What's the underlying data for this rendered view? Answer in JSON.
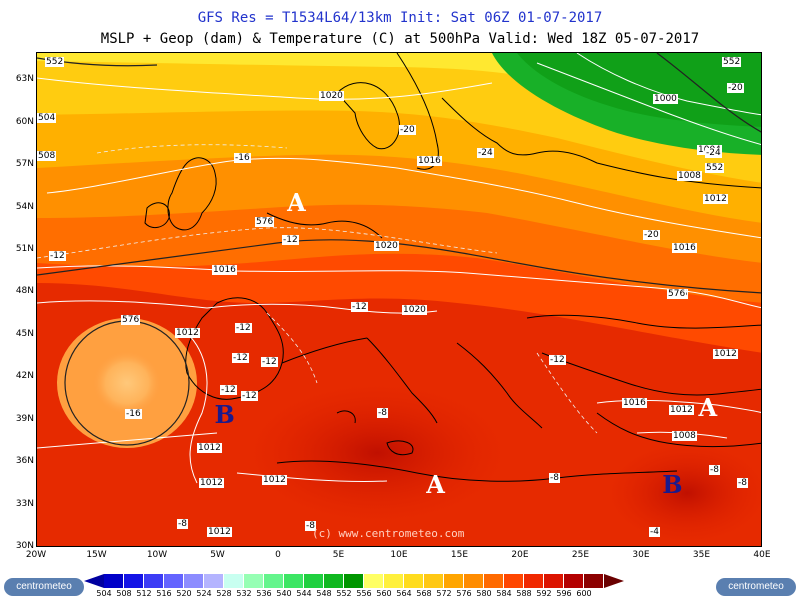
{
  "header": {
    "title_line1": "GFS Res = T1534L64/13km   Init: Sat 06Z 01-07-2017",
    "title_line2": "MSLP + Geop (dam) & Temperature (C) at 500hPa  Valid: Wed 18Z 05-07-2017"
  },
  "watermark": "(c) www.centrometeo.com",
  "axes": {
    "lat_labels": [
      "63N",
      "60N",
      "57N",
      "54N",
      "51N",
      "48N",
      "45N",
      "42N",
      "39N",
      "36N",
      "33N",
      "30N"
    ],
    "lon_labels": [
      "20W",
      "15W",
      "10W",
      "5W",
      "0",
      "5E",
      "10E",
      "15E",
      "20E",
      "25E",
      "30E",
      "35E",
      "40E"
    ],
    "lat_range": [
      30,
      65
    ],
    "lon_range": [
      -20,
      40
    ]
  },
  "pressure_centers": [
    {
      "type": "A",
      "lon": 1.5,
      "lat": 54.5
    },
    {
      "type": "B",
      "lon": -4.5,
      "lat": 39.5
    },
    {
      "type": "A",
      "lon": 13,
      "lat": 34.5
    },
    {
      "type": "A",
      "lon": 35.5,
      "lat": 40
    },
    {
      "type": "B",
      "lon": 32.5,
      "lat": 34.5
    }
  ],
  "isobar_labels": [
    "1020",
    "1016",
    "1020",
    "1012",
    "1020",
    "1016",
    "1016",
    "1012",
    "1012",
    "1016",
    "1012",
    "1008",
    "1012",
    "1012",
    "1000",
    "1004",
    "1008",
    "1012",
    "1012"
  ],
  "geopotential_labels": [
    "552",
    "576",
    "576",
    "576",
    "552",
    "552",
    "504",
    "508",
    "576"
  ],
  "temperature_labels": [
    "-16",
    "-16",
    "-12",
    "-12",
    "-12",
    "-12",
    "-12",
    "-12",
    "-12",
    "-12",
    "-12",
    "-8",
    "-8",
    "-8",
    "-8",
    "-4",
    "-20",
    "-24",
    "-20",
    "-20",
    "-24",
    "-8",
    "-8"
  ],
  "colorbar": {
    "ticks": [
      "504",
      "508",
      "512",
      "516",
      "520",
      "524",
      "528",
      "532",
      "536",
      "540",
      "544",
      "548",
      "552",
      "556",
      "560",
      "564",
      "568",
      "572",
      "576",
      "580",
      "584",
      "588",
      "592",
      "596",
      "600"
    ],
    "colors": [
      "#0000c8",
      "#1414e6",
      "#3c3cf5",
      "#6464ff",
      "#8c8cff",
      "#b4b4ff",
      "#c8fff0",
      "#96ffb4",
      "#64f58c",
      "#3ce664",
      "#20d040",
      "#10b820",
      "#009600",
      "#ffff64",
      "#fff03c",
      "#ffdc1e",
      "#ffc814",
      "#ffa500",
      "#ff8c00",
      "#ff6a00",
      "#ff4600",
      "#f02800",
      "#dc1400",
      "#b40000",
      "#8c0000"
    ],
    "brand": "centrometeo"
  },
  "colors": {
    "title_blue": "#2233cc",
    "high_label": "#ffffff",
    "low_label": "#1a1a8c",
    "green_low": "#10a818",
    "deep_red": "#b40a00"
  }
}
